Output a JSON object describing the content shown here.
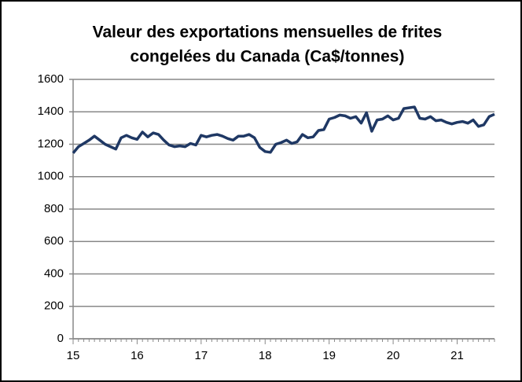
{
  "chart_data": {
    "type": "line",
    "title": [
      "Valeur des exportations mensuelles de frites",
      "congelées du Canada (Ca$/tonnes)"
    ],
    "categories": [
      "15",
      null,
      null,
      null,
      null,
      null,
      null,
      null,
      null,
      null,
      null,
      null,
      "16",
      null,
      null,
      null,
      null,
      null,
      null,
      null,
      null,
      null,
      null,
      null,
      "17",
      null,
      null,
      null,
      null,
      null,
      null,
      null,
      null,
      null,
      null,
      null,
      "18",
      null,
      null,
      null,
      null,
      null,
      null,
      null,
      null,
      null,
      null,
      null,
      "19",
      null,
      null,
      null,
      null,
      null,
      null,
      null,
      null,
      null,
      null,
      null,
      "20",
      null,
      null,
      null,
      null,
      null,
      null,
      null,
      null,
      null,
      null,
      null,
      "21",
      null,
      null,
      null,
      null,
      null,
      null,
      null
    ],
    "series": [
      {
        "color": "#1f3864",
        "values": [
          1145,
          1185,
          1205,
          1225,
          1250,
          1225,
          1200,
          1185,
          1170,
          1240,
          1255,
          1240,
          1230,
          1275,
          1245,
          1270,
          1260,
          1225,
          1195,
          1185,
          1190,
          1185,
          1205,
          1195,
          1255,
          1245,
          1255,
          1260,
          1250,
          1235,
          1225,
          1250,
          1250,
          1260,
          1240,
          1180,
          1155,
          1150,
          1200,
          1210,
          1225,
          1205,
          1215,
          1260,
          1240,
          1245,
          1285,
          1290,
          1355,
          1365,
          1380,
          1375,
          1360,
          1370,
          1330,
          1395,
          1280,
          1350,
          1355,
          1375,
          1350,
          1360,
          1420,
          1425,
          1430,
          1360,
          1355,
          1370,
          1345,
          1350,
          1335,
          1325,
          1335,
          1340,
          1330,
          1350,
          1310,
          1320,
          1370,
          1385
        ]
      }
    ],
    "ylim": [
      0,
      1600
    ],
    "yticks": [
      0,
      200,
      400,
      600,
      800,
      1000,
      1200,
      1400,
      1600
    ],
    "grid": true
  }
}
